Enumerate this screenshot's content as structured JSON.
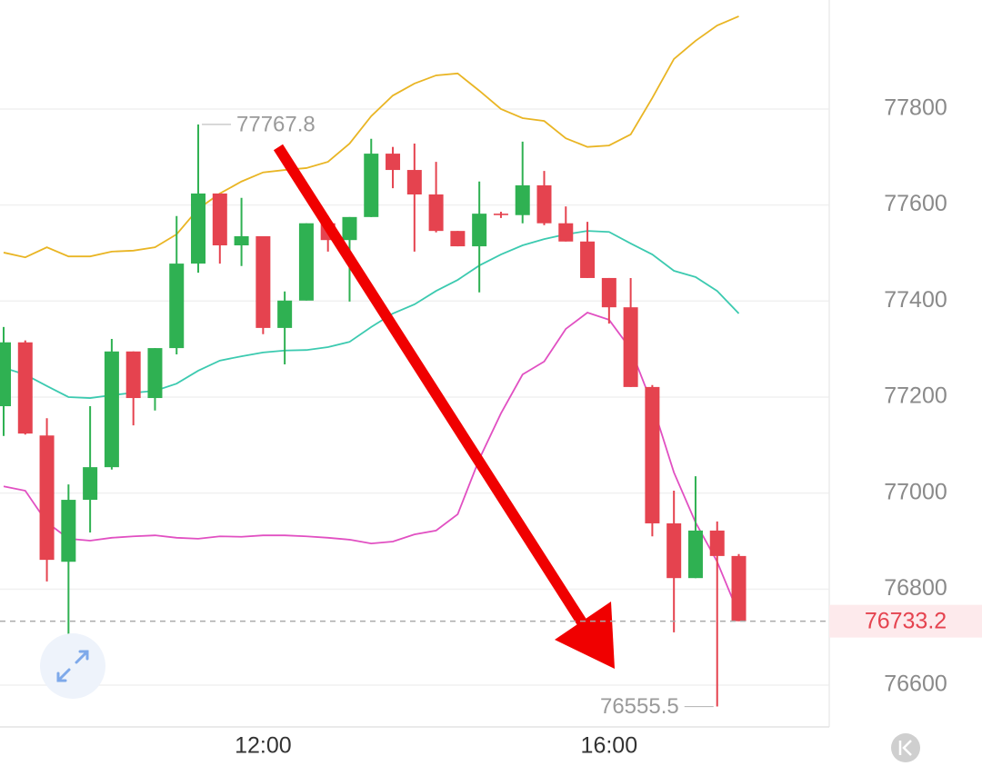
{
  "chart_data": {
    "type": "candlestick",
    "categories": [
      null,
      null,
      null,
      null,
      null,
      null,
      null,
      null,
      null,
      null,
      null,
      null,
      "12:00",
      null,
      null,
      null,
      null,
      null,
      null,
      null,
      null,
      null,
      null,
      null,
      null,
      null,
      null,
      null,
      "16:00",
      null,
      null,
      null,
      null,
      null,
      null
    ],
    "open": [
      77181,
      77314,
      77120,
      76857,
      76986,
      77054,
      77295,
      77198,
      77302,
      77478,
      77624,
      77516,
      77535,
      77344,
      77401,
      77562,
      77527,
      77575,
      77707,
      77673,
      77622,
      77546,
      77514,
      77582,
      77579,
      77641,
      77562,
      77524,
      77448,
      77387,
      77221,
      76937,
      76823,
      76922,
      76869
    ],
    "high": [
      77346,
      77318,
      77156,
      77018,
      77181,
      77321,
      77295,
      77302,
      77577,
      77767.8,
      77624,
      77615,
      77535,
      77420,
      77562,
      77577,
      77575,
      77738,
      77721,
      77728,
      77690,
      77546,
      77649,
      77586,
      77732,
      77671,
      77597,
      77565,
      77448,
      77448,
      77225,
      77005,
      77035,
      76941,
      76873
    ],
    "low": [
      77119,
      77122,
      76816,
      76687,
      76918,
      77049,
      77141,
      77172,
      77289,
      77459,
      77478,
      77473,
      77331,
      77268,
      77401,
      77503,
      77399,
      77575,
      77635,
      77503,
      77543,
      77514,
      77418,
      77573,
      77562,
      77558,
      77524,
      77448,
      77353,
      77221,
      76910,
      76710,
      76823,
      76555.5,
      76733.2
    ],
    "close": [
      77314,
      77124,
      76861,
      76986,
      77054,
      77295,
      77198,
      77302,
      77478,
      77624,
      77516,
      77535,
      77344,
      77401,
      77562,
      77527,
      77575,
      77707,
      77673,
      77622,
      77546,
      77514,
      77582,
      77579,
      77641,
      77562,
      77524,
      77448,
      77387,
      77221,
      76937,
      76823,
      76922,
      76869,
      76733.2
    ],
    "up_color": "#2fb152",
    "down_color": "#e5434f",
    "overlays": [
      {
        "color": "#e9b524",
        "values": [
          77501,
          77491,
          77512,
          77493,
          77493,
          77503,
          77505,
          77512,
          77539,
          77592,
          77624,
          77649,
          77668,
          77673,
          77677,
          77690,
          77728,
          77785,
          77828,
          77853,
          77870,
          77874,
          77838,
          77800,
          77781,
          77775,
          77739,
          77721,
          77724,
          77747,
          77823,
          77904,
          77942,
          77974,
          77993
        ]
      },
      {
        "color": "#3ccab0",
        "values": [
          77261,
          77247,
          77223,
          77200,
          77198,
          77204,
          77209,
          77213,
          77228,
          77255,
          77276,
          77285,
          77293,
          77297,
          77298,
          77304,
          77315,
          77346,
          77374,
          77393,
          77421,
          77444,
          77474,
          77497,
          77516,
          77529,
          77539,
          77546,
          77544,
          77520,
          77497,
          77463,
          77450,
          77421,
          77374
        ]
      },
      {
        "color": "#e150c2",
        "values": [
          77014,
          77005,
          76939,
          76905,
          76901,
          76907,
          76910,
          76912,
          76907,
          76905,
          76910,
          76909,
          76912,
          76912,
          76910,
          76907,
          76903,
          76895,
          76899,
          76914,
          76922,
          76956,
          77071,
          77166,
          77247,
          77274,
          77342,
          77376,
          77361,
          77300,
          77185,
          77043,
          76939,
          76857,
          76748
        ]
      }
    ],
    "ylim": [
      76513,
      78027
    ],
    "yticks": [
      76600,
      76800,
      77000,
      77200,
      77400,
      77600,
      77800
    ],
    "grid": true,
    "high_marker": 77767.8,
    "low_marker": 76555.5,
    "last_price": 76733.2
  }
}
